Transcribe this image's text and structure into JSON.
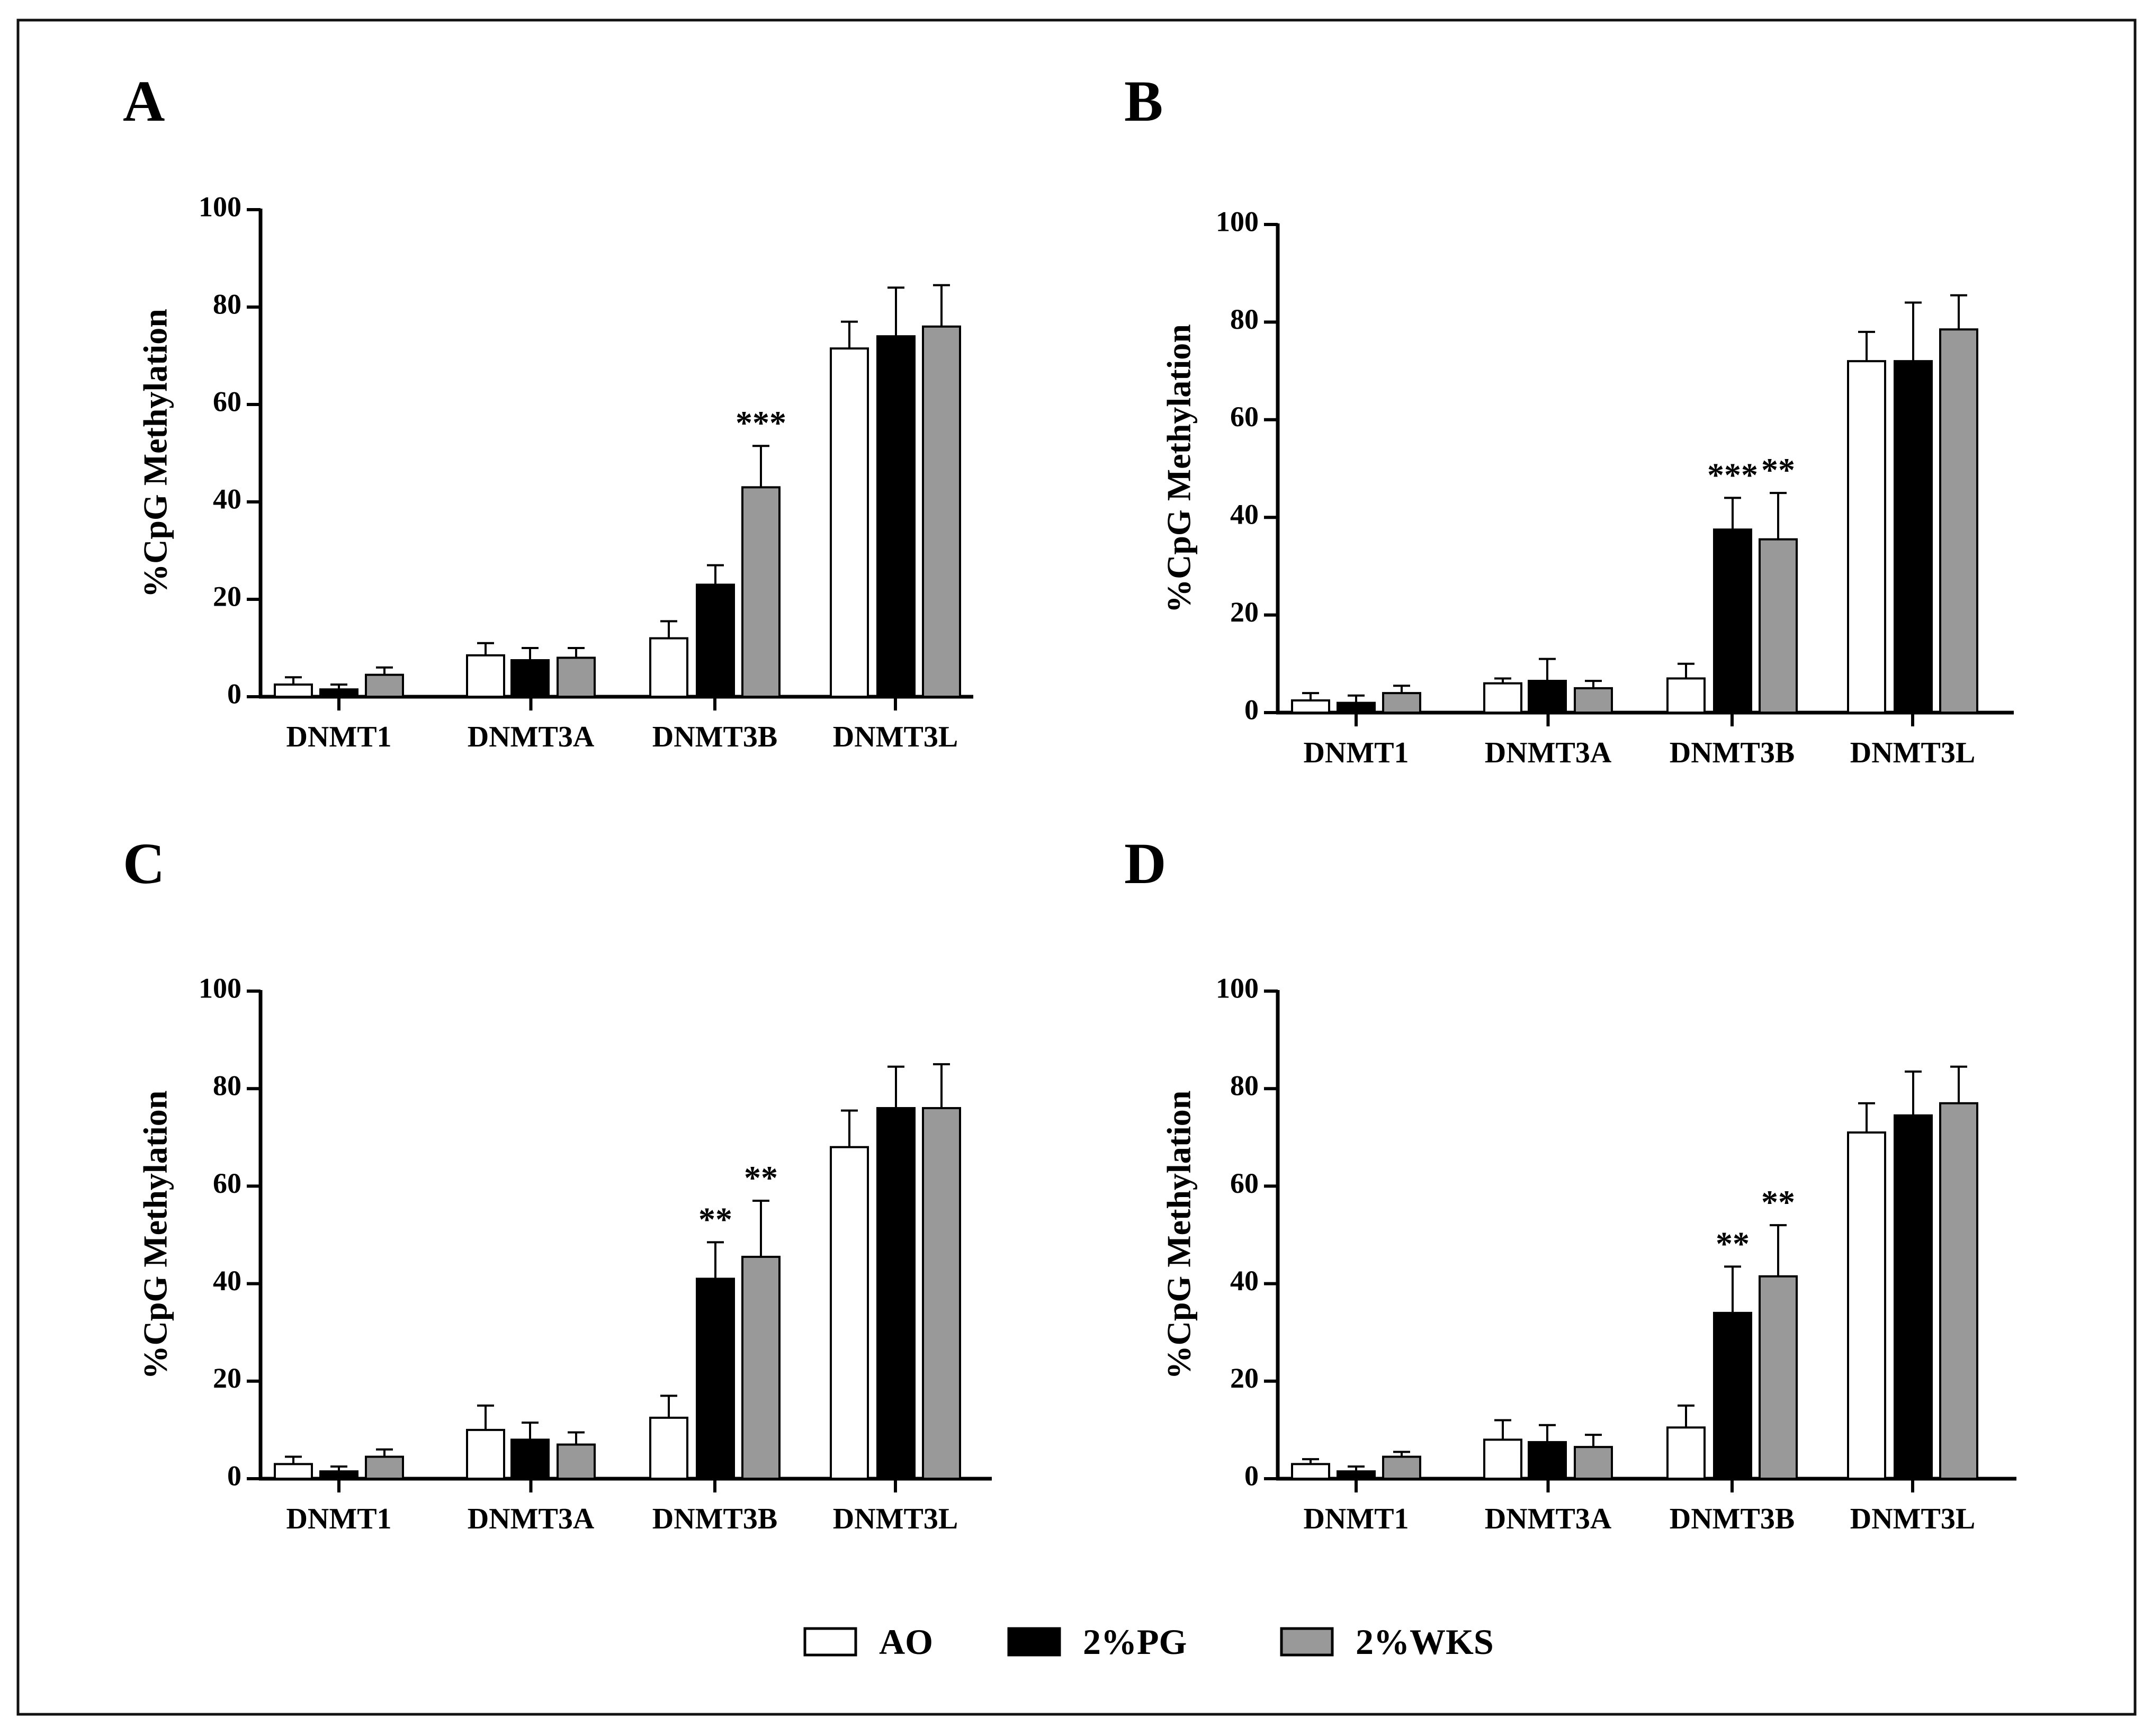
{
  "figure": {
    "legend": [
      {
        "key": "AO",
        "label": "AO",
        "color": "#ffffff"
      },
      {
        "key": "PG",
        "label": "2%PG",
        "color": "#000000"
      },
      {
        "key": "WKS",
        "label": "2%WKS",
        "color": "#999999"
      }
    ]
  },
  "chart_data": [
    {
      "panel": "A",
      "type": "bar",
      "ylabel": "%CpG Methylation",
      "ylim": [
        0,
        100
      ],
      "yticks": [
        "0",
        "20",
        "40",
        "60",
        "80",
        "100"
      ],
      "categories": [
        "DNMT1",
        "DNMT3A",
        "DNMT3B",
        "DNMT3L"
      ],
      "series": [
        {
          "name": "AO",
          "values": [
            2.5,
            8.5,
            12,
            71.5
          ],
          "errors": [
            1.5,
            2.5,
            3.5,
            5.5
          ]
        },
        {
          "name": "2%PG",
          "values": [
            1.5,
            7.5,
            23,
            74
          ],
          "errors": [
            1,
            2.5,
            4,
            10
          ]
        },
        {
          "name": "2%WKS",
          "values": [
            4.5,
            8,
            43,
            76
          ],
          "errors": [
            1.5,
            2,
            8.5,
            8.5
          ]
        }
      ],
      "annotations": [
        {
          "category": "DNMT3B",
          "series": "2%WKS",
          "text": "***"
        }
      ]
    },
    {
      "panel": "B",
      "type": "bar",
      "ylabel": "%CpG Methylation",
      "ylim": [
        0,
        100
      ],
      "yticks": [
        "0",
        "20",
        "40",
        "60",
        "80",
        "100"
      ],
      "categories": [
        "DNMT1",
        "DNMT3A",
        "DNMT3B",
        "DNMT3L"
      ],
      "series": [
        {
          "name": "AO",
          "values": [
            2.5,
            6,
            7,
            72
          ],
          "errors": [
            1.5,
            1,
            3,
            6
          ]
        },
        {
          "name": "2%PG",
          "values": [
            2,
            6.5,
            37.5,
            72
          ],
          "errors": [
            1.5,
            4.5,
            6.5,
            12
          ]
        },
        {
          "name": "2%WKS",
          "values": [
            4,
            5,
            35.5,
            78.5
          ],
          "errors": [
            1.5,
            1.5,
            9.5,
            7
          ]
        }
      ],
      "annotations": [
        {
          "category": "DNMT3B",
          "series": "2%PG",
          "text": "***"
        },
        {
          "category": "DNMT3B",
          "series": "2%WKS",
          "text": "**"
        }
      ]
    },
    {
      "panel": "C",
      "type": "bar",
      "ylabel": "%CpG Methylation",
      "ylim": [
        0,
        100
      ],
      "yticks": [
        "0",
        "20",
        "40",
        "60",
        "80",
        "100"
      ],
      "categories": [
        "DNMT1",
        "DNMT3A",
        "DNMT3B",
        "DNMT3L"
      ],
      "series": [
        {
          "name": "AO",
          "values": [
            3,
            10,
            12.5,
            68
          ],
          "errors": [
            1.5,
            5,
            4.5,
            7.5
          ]
        },
        {
          "name": "2%PG",
          "values": [
            1.5,
            8,
            41,
            76
          ],
          "errors": [
            1,
            3.5,
            7.5,
            8.5
          ]
        },
        {
          "name": "2%WKS",
          "values": [
            4.5,
            7,
            45.5,
            76
          ],
          "errors": [
            1.5,
            2.5,
            11.5,
            9
          ]
        }
      ],
      "annotations": [
        {
          "category": "DNMT3B",
          "series": "2%PG",
          "text": "**"
        },
        {
          "category": "DNMT3B",
          "series": "2%WKS",
          "text": "**"
        }
      ]
    },
    {
      "panel": "D",
      "type": "bar",
      "ylabel": "%CpG Methylation",
      "ylim": [
        0,
        100
      ],
      "yticks": [
        "0",
        "20",
        "40",
        "60",
        "80",
        "100"
      ],
      "categories": [
        "DNMT1",
        "DNMT3A",
        "DNMT3B",
        "DNMT3L"
      ],
      "series": [
        {
          "name": "AO",
          "values": [
            3,
            8,
            10.5,
            71
          ],
          "errors": [
            1,
            4,
            4.5,
            6
          ]
        },
        {
          "name": "2%PG",
          "values": [
            1.5,
            7.5,
            34,
            74.5
          ],
          "errors": [
            1,
            3.5,
            9.5,
            9
          ]
        },
        {
          "name": "2%WKS",
          "values": [
            4.5,
            6.5,
            41.5,
            77
          ],
          "errors": [
            1,
            2.5,
            10.5,
            7.5
          ]
        }
      ],
      "annotations": [
        {
          "category": "DNMT3B",
          "series": "2%PG",
          "text": "**"
        },
        {
          "category": "DNMT3B",
          "series": "2%WKS",
          "text": "**"
        }
      ]
    }
  ]
}
